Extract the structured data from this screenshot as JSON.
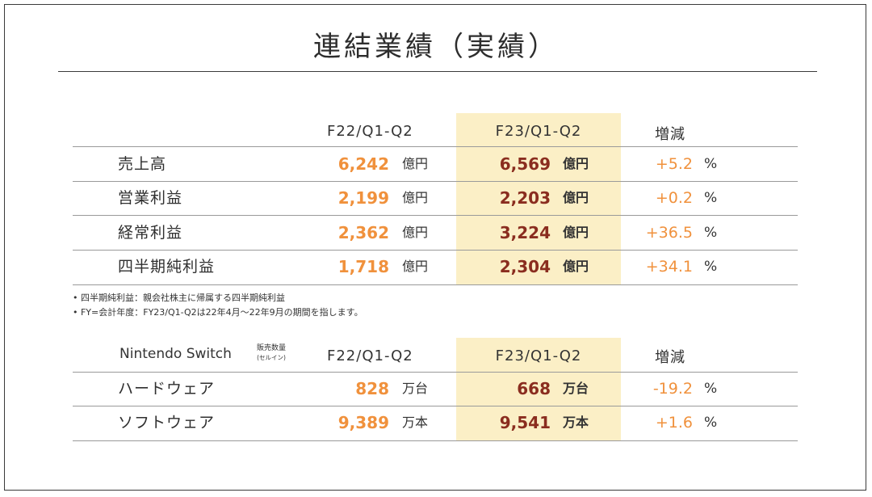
{
  "title": "連結業績（実績）",
  "headers": {
    "prev": "F22/Q1-Q2",
    "curr": "F23/Q1-Q2",
    "change": "増減"
  },
  "financials": [
    {
      "label": "売上高",
      "prev": "6,242",
      "prev_unit": "億円",
      "curr": "6,569",
      "curr_unit": "億円",
      "change": "+5.2",
      "change_unit": "%"
    },
    {
      "label": "営業利益",
      "prev": "2,199",
      "prev_unit": "億円",
      "curr": "2,203",
      "curr_unit": "億円",
      "change": "+0.2",
      "change_unit": "%"
    },
    {
      "label": "経常利益",
      "prev": "2,362",
      "prev_unit": "億円",
      "curr": "3,224",
      "curr_unit": "億円",
      "change": "+36.5",
      "change_unit": "%"
    },
    {
      "label": "四半期純利益",
      "prev": "1,718",
      "prev_unit": "億円",
      "curr": "2,304",
      "curr_unit": "億円",
      "change": "+34.1",
      "change_unit": "%"
    }
  ],
  "notes": [
    "• 四半期純利益：親会社株主に帰属する四半期純利益",
    "• FY=会計年度：FY23/Q1-Q2は22年4月～22年9月の期間を指します。"
  ],
  "switch": {
    "label": "Nintendo Switch",
    "sublabel_1": "販売数量",
    "sublabel_2": "(セルイン)",
    "prev_header": "F22/Q1-Q2",
    "curr_header": "F23/Q1-Q2",
    "change_header": "増減",
    "rows": [
      {
        "label": "ハードウェア",
        "prev": "828",
        "prev_unit": "万台",
        "curr": "668",
        "curr_unit": "万台",
        "change": "-19.2",
        "change_unit": "%"
      },
      {
        "label": "ソフトウェア",
        "prev": "9,389",
        "prev_unit": "万本",
        "curr": "9,541",
        "curr_unit": "万本",
        "change": "+1.6",
        "change_unit": "%"
      }
    ]
  }
}
